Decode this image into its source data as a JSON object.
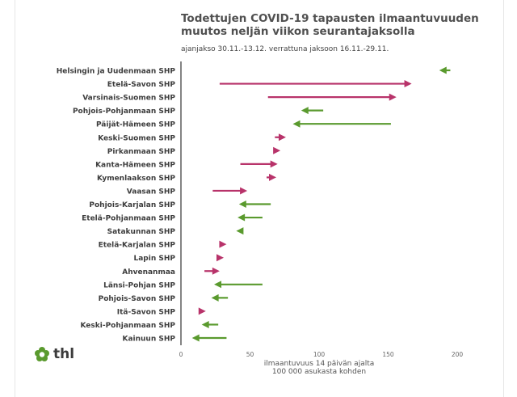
{
  "chart_data": {
    "type": "arrow-change",
    "title": "Todettujen COVID-19 tapausten ilmaantuvuuden muutos neljän viikon seurantajaksolla",
    "subtitle": "ajanjakso 30.11.-13.12. verrattuna jaksoon 16.11.-29.11.",
    "xlabel": [
      "ilmaantuvuus 14 päivän ajalta",
      "100 000 asukasta kohden"
    ],
    "xlim": [
      0,
      205
    ],
    "xticks": [
      0,
      50,
      100,
      150,
      200
    ],
    "colors": {
      "increase": "#b8336a",
      "decrease": "#5a9a2e"
    },
    "categories": [
      "Helsingin ja Uudenmaan SHP",
      "Etelä-Savon SHP",
      "Varsinais-Suomen SHP",
      "Pohjois-Pohjanmaan SHP",
      "Päijät-Hämeen SHP",
      "Keski-Suomen SHP",
      "Pirkanmaan SHP",
      "Kanta-Hämeen SHP",
      "Kymenlaakson SHP",
      "Vaasan SHP",
      "Pohjois-Karjalan SHP",
      "Etelä-Pohjanmaan SHP",
      "Satakunnan SHP",
      "Etelä-Karjalan SHP",
      "Lapin SHP",
      "Ahvenanmaa",
      "Länsi-Pohjan SHP",
      "Pohjois-Savon SHP",
      "Itä-Savon SHP",
      "Keski-Pohjanmaan SHP",
      "Kainuun SHP"
    ],
    "series": [
      {
        "name": "16.11.-29.11.",
        "values": [
          195,
          28,
          63,
          103,
          152,
          68,
          70,
          43,
          62,
          23,
          65,
          59,
          43,
          30,
          27,
          17,
          59,
          34,
          13,
          27,
          33
        ]
      },
      {
        "name": "30.11.-13.12.",
        "values": [
          187,
          167,
          156,
          87,
          81,
          76,
          72,
          70,
          69,
          48,
          42,
          41,
          40,
          33,
          31,
          28,
          24,
          22,
          18,
          15,
          8
        ]
      }
    ]
  },
  "logo": {
    "text": "thl"
  }
}
